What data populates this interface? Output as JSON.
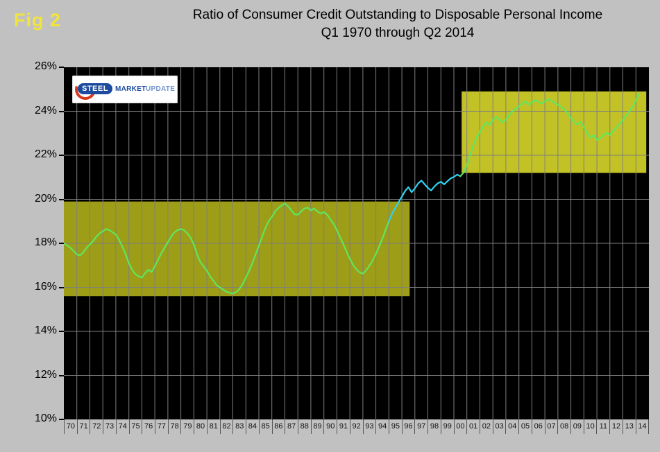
{
  "logo": {
    "steel": "STEEL",
    "market": "MARKET",
    "update": "UPDATE"
  },
  "chart_data": {
    "type": "line",
    "fig_label": "Fig 2",
    "title": "Ratio of Consumer Credit Outstanding to Disposable Personal Income",
    "subtitle": "Q1 1970 through Q2 2014",
    "xlabel": "",
    "ylabel": "",
    "xlim": [
      1970,
      2015
    ],
    "ylim": [
      10,
      26
    ],
    "ytick_step": 2,
    "ytick_labels": [
      "10%",
      "12%",
      "14%",
      "16%",
      "18%",
      "20%",
      "22%",
      "24%",
      "26%"
    ],
    "xtick_labels": [
      "70",
      "71",
      "72",
      "73",
      "74",
      "75",
      "76",
      "77",
      "78",
      "79",
      "80",
      "81",
      "82",
      "83",
      "84",
      "85",
      "86",
      "87",
      "88",
      "89",
      "90",
      "91",
      "92",
      "93",
      "94",
      "95",
      "96",
      "97",
      "98",
      "99",
      "00",
      "01",
      "02",
      "03",
      "04",
      "05",
      "06",
      "07",
      "08",
      "09",
      "10",
      "11",
      "12",
      "13",
      "14"
    ],
    "grid": true,
    "grid_color": "#7f7f7f",
    "plot_bg": "#000000",
    "page_bg": "#c1c1c1",
    "legend": "none",
    "bands": [
      {
        "name": "range-1970-1996",
        "x0": 1970.0,
        "x1": 1996.6,
        "y0": 15.6,
        "y1": 19.9,
        "color": "#9d9d18"
      },
      {
        "name": "range-2000-2014",
        "x0": 2000.6,
        "x1": 2014.8,
        "y0": 21.2,
        "y1": 24.9,
        "color": "#c2c226"
      }
    ],
    "series": {
      "name": "consumer-credit-to-dpi-ratio",
      "unit": "percent",
      "x_start": 1970.0,
      "x_step": 0.25,
      "values": [
        18.0,
        17.9,
        17.8,
        17.65,
        17.5,
        17.45,
        17.6,
        17.8,
        17.95,
        18.1,
        18.3,
        18.45,
        18.55,
        18.65,
        18.6,
        18.5,
        18.4,
        18.15,
        17.85,
        17.5,
        17.1,
        16.8,
        16.6,
        16.5,
        16.45,
        16.65,
        16.8,
        16.7,
        16.95,
        17.25,
        17.55,
        17.8,
        18.05,
        18.3,
        18.5,
        18.6,
        18.65,
        18.6,
        18.45,
        18.25,
        17.95,
        17.5,
        17.15,
        16.95,
        16.75,
        16.5,
        16.3,
        16.1,
        16.0,
        15.9,
        15.8,
        15.75,
        15.72,
        15.78,
        15.92,
        16.15,
        16.45,
        16.75,
        17.1,
        17.5,
        17.9,
        18.3,
        18.7,
        19.0,
        19.2,
        19.45,
        19.6,
        19.72,
        19.8,
        19.68,
        19.5,
        19.32,
        19.3,
        19.45,
        19.58,
        19.62,
        19.5,
        19.58,
        19.45,
        19.35,
        19.42,
        19.3,
        19.1,
        18.88,
        18.6,
        18.28,
        17.95,
        17.62,
        17.3,
        17.02,
        16.82,
        16.68,
        16.62,
        16.78,
        16.98,
        17.22,
        17.52,
        17.85,
        18.22,
        18.62,
        19.0,
        19.35,
        19.62,
        19.88,
        20.12,
        20.38,
        20.55,
        20.32,
        20.5,
        20.72,
        20.85,
        20.68,
        20.52,
        20.4,
        20.58,
        20.72,
        20.8,
        20.68,
        20.82,
        20.95,
        21.02,
        21.12,
        21.05,
        21.22,
        21.55,
        22.0,
        22.45,
        22.8,
        23.05,
        23.3,
        23.5,
        23.38,
        23.6,
        23.75,
        23.62,
        23.5,
        23.62,
        23.82,
        24.0,
        24.12,
        24.22,
        24.35,
        24.45,
        24.3,
        24.4,
        24.5,
        24.45,
        24.35,
        24.45,
        24.55,
        24.48,
        24.38,
        24.3,
        24.2,
        24.08,
        23.9,
        23.7,
        23.5,
        23.4,
        23.52,
        23.3,
        23.0,
        22.8,
        22.92,
        22.7,
        22.78,
        22.9,
        23.02,
        22.92,
        23.1,
        23.25,
        23.42,
        23.6,
        23.8,
        24.0,
        24.2,
        24.5,
        24.8
      ],
      "segments": [
        {
          "name": "early-green",
          "from": 0,
          "to": 100,
          "color": "#5fe65f"
        },
        {
          "name": "mid-cyan",
          "from": 100,
          "to": 122,
          "color": "#2fd3f2"
        },
        {
          "name": "late-green",
          "from": 122,
          "to": 177,
          "color": "#5fe65f"
        }
      ]
    }
  }
}
